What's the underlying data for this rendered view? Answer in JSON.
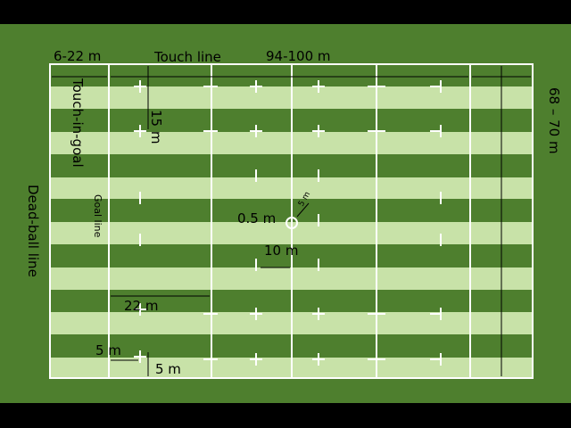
{
  "labels": {
    "in_goal_length": "6-22 m",
    "touch_line": "Touch line",
    "field_length": "94-100 m",
    "field_width": "68 – 70 m",
    "touch_in_goal": "Touch-in-goal",
    "fifteen_m": "15 m",
    "dead_ball_line": "Dead-ball line",
    "goal_line": "Goal line",
    "center_radius": "5 m",
    "center_spot": "0.5 m",
    "ten_m": "10 m",
    "twenty_two_m": "22 m",
    "five_m_goal": "5 m",
    "five_m_touch": "5 m"
  }
}
